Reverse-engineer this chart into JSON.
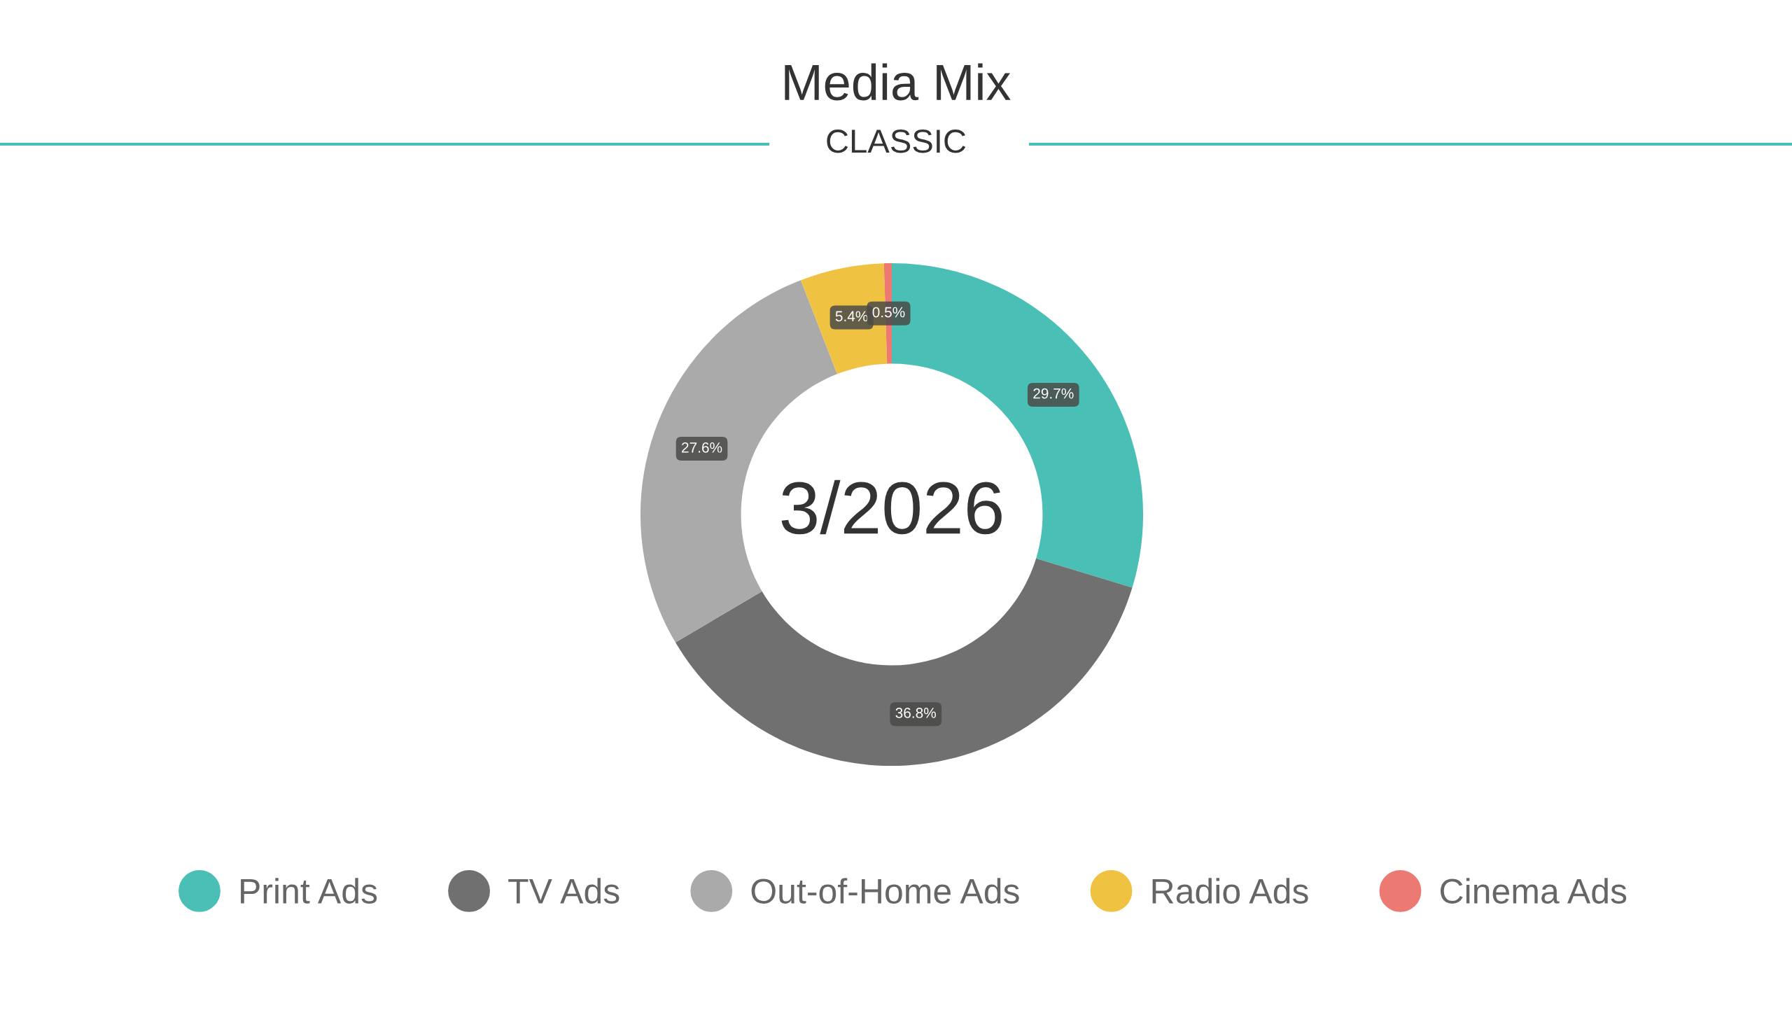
{
  "chart_data": {
    "type": "donut",
    "title": "Media Mix",
    "subtitle": "CLASSIC",
    "categories": [
      "Print Ads",
      "TV Ads",
      "Out-of-Home Ads",
      "Radio Ads",
      "Cinema Ads"
    ],
    "values": [
      29.7,
      36.8,
      27.6,
      5.4,
      0.5
    ],
    "colors": [
      "#4abfb5",
      "#6f706f",
      "#aaaaaa",
      "#f0c242",
      "#ec7a72"
    ],
    "value_labels": [
      "29.7%",
      "36.8%",
      "27.6%",
      "5.4%",
      "0.5%"
    ],
    "annotations": [
      "3/2026"
    ],
    "legend": "bottom"
  }
}
